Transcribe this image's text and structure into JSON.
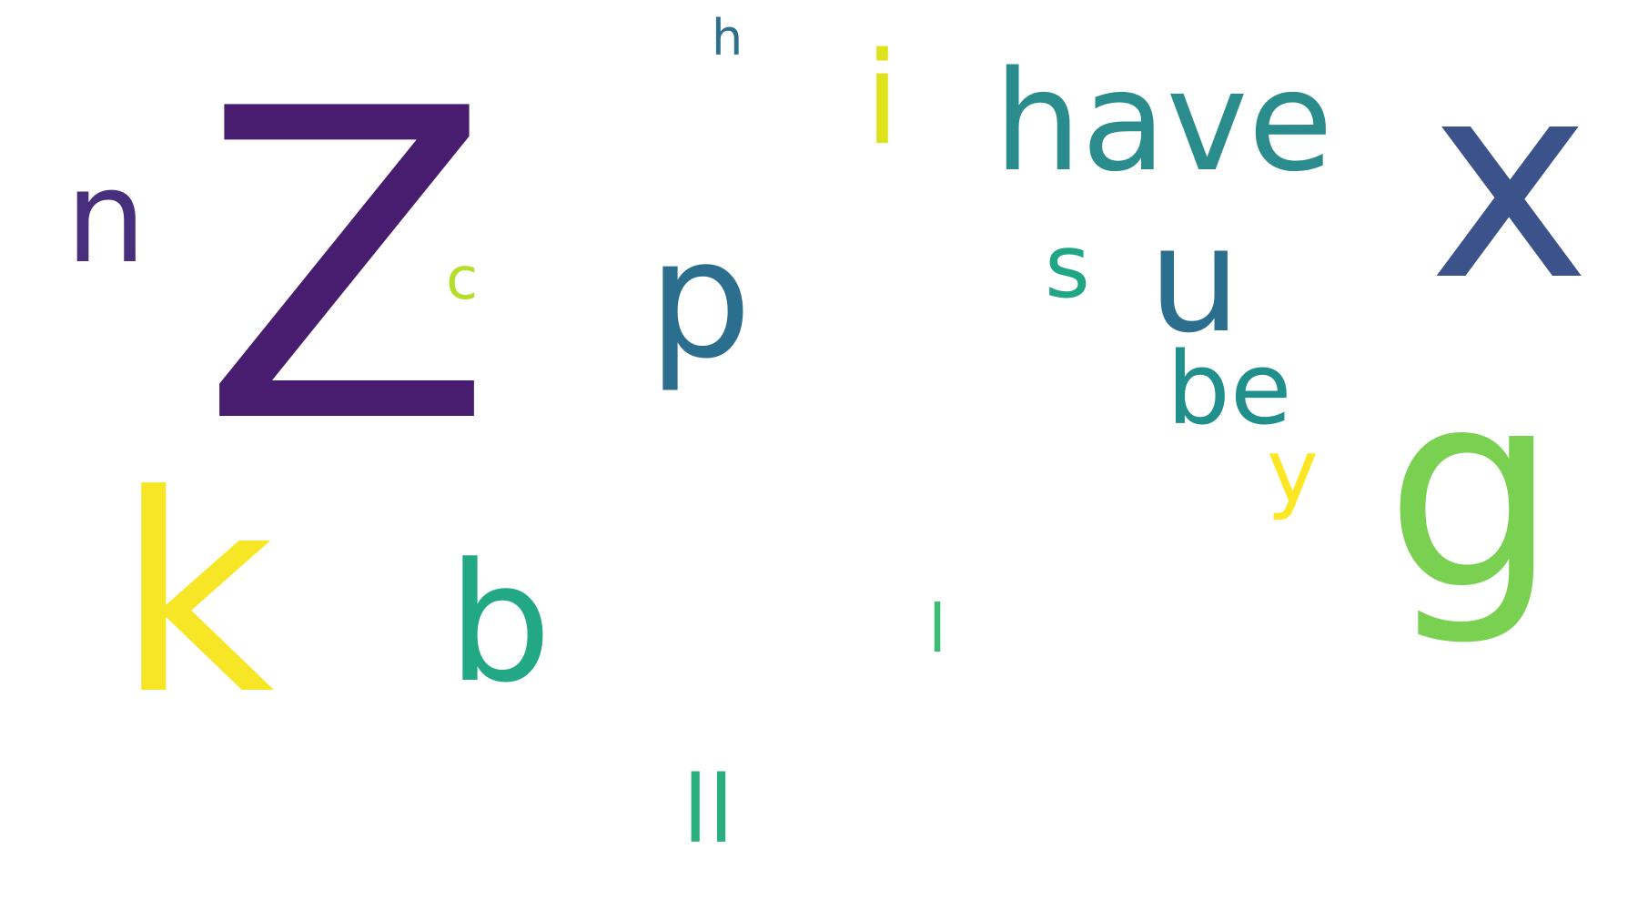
{
  "word_cloud": {
    "words": [
      {
        "id": "z",
        "text": "Z",
        "color": "#481c6e"
      },
      {
        "id": "x",
        "text": "x",
        "color": "#3b528b"
      },
      {
        "id": "k",
        "text": "k",
        "color": "#f7e625"
      },
      {
        "id": "g",
        "text": "g",
        "color": "#7ad151"
      },
      {
        "id": "have",
        "text": "have",
        "color": "#2a8c8c"
      },
      {
        "id": "p",
        "text": "p",
        "color": "#2c6e8e"
      },
      {
        "id": "b-large",
        "text": "b",
        "color": "#22a884"
      },
      {
        "id": "u",
        "text": "u",
        "color": "#2c6e8e"
      },
      {
        "id": "n",
        "text": "n",
        "color": "#472f7d"
      },
      {
        "id": "i",
        "text": "i",
        "color": "#dde318"
      },
      {
        "id": "be",
        "text": "be",
        "color": "#21908d"
      },
      {
        "id": "ll",
        "text": "ll",
        "color": "#2ab07f"
      },
      {
        "id": "s",
        "text": "s",
        "color": "#21a685"
      },
      {
        "id": "y",
        "text": "y",
        "color": "#fde725"
      },
      {
        "id": "l",
        "text": "l",
        "color": "#3bbb75"
      },
      {
        "id": "c",
        "text": "c",
        "color": "#b5de2b"
      },
      {
        "id": "h",
        "text": "h",
        "color": "#2e6f8e"
      }
    ]
  }
}
